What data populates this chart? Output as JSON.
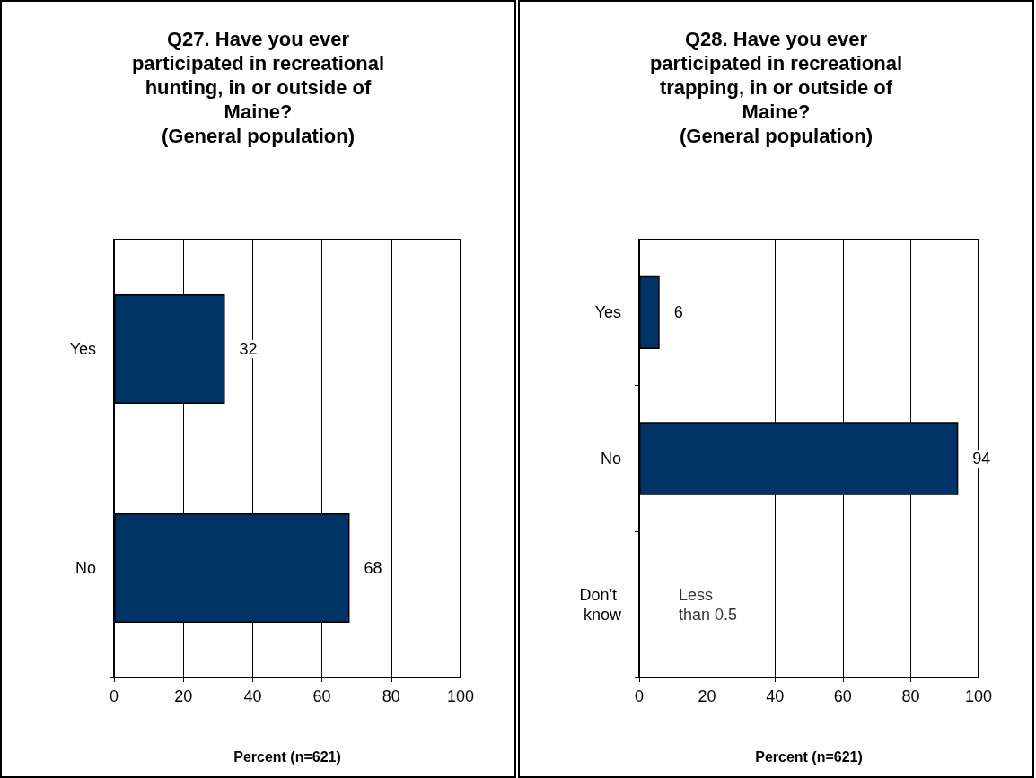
{
  "chart_data": [
    {
      "type": "bar",
      "orientation": "horizontal",
      "title": "Q27. Have you ever participated in recreational hunting, in or outside of Maine?\n(General population)",
      "xlabel": "Percent (n=621)",
      "categories": [
        "Yes",
        "No"
      ],
      "values": [
        32,
        68
      ],
      "color": "#003366",
      "xlim": [
        0,
        100
      ],
      "xticks": [
        0,
        20,
        40,
        60,
        80,
        100
      ],
      "grid": "x",
      "data_labels": true
    },
    {
      "type": "bar",
      "orientation": "horizontal",
      "title": "Q28. Have you ever participated in recreational trapping, in or outside of Maine?\n(General population)",
      "xlabel": "Percent (n=621)",
      "categories": [
        "Yes",
        "No",
        "Don't know"
      ],
      "values": [
        6,
        94,
        null
      ],
      "color": "#003366",
      "xlim": [
        0,
        100
      ],
      "xticks": [
        0,
        20,
        40,
        60,
        80,
        100
      ],
      "grid": "x",
      "data_labels": true,
      "annotations": [
        "Less than 0.5"
      ]
    }
  ]
}
